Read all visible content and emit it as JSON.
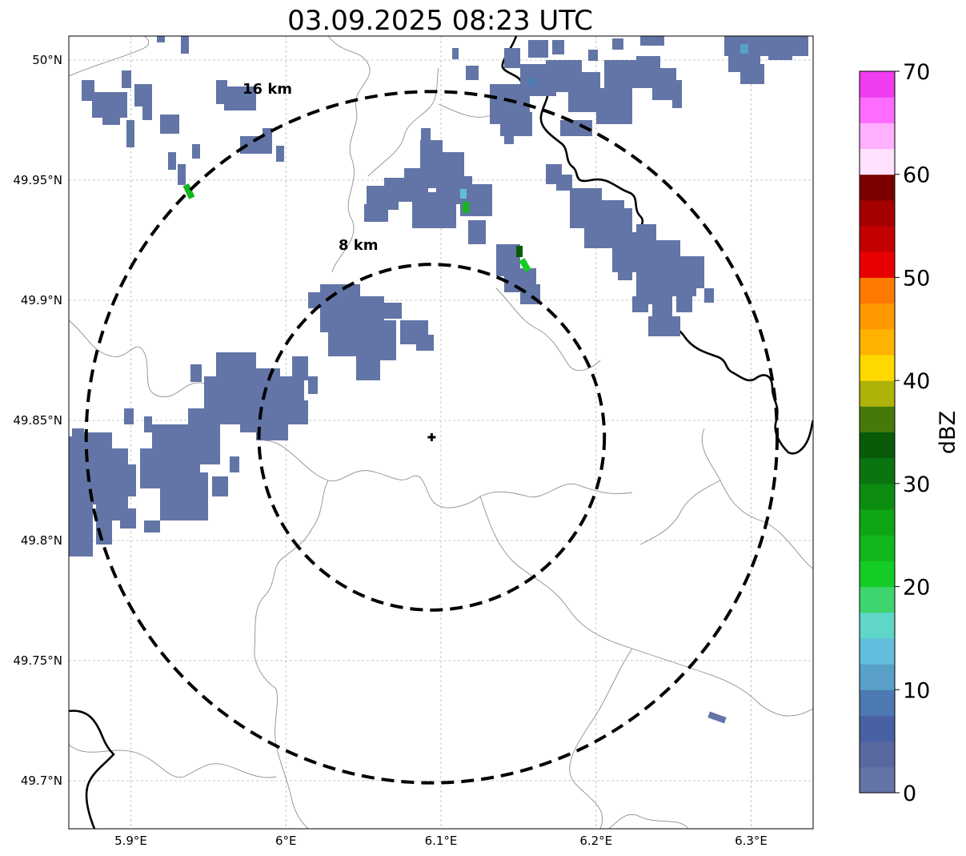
{
  "title": "03.09.2025 08:23 UTC",
  "map": {
    "lon_range": [
      5.86,
      6.34
    ],
    "lat_range": [
      49.68,
      50.01
    ],
    "lon_ticks": [
      {
        "value": 5.9,
        "label": "5.9°E"
      },
      {
        "value": 6.0,
        "label": "6°E"
      },
      {
        "value": 6.1,
        "label": "6.1°E"
      },
      {
        "value": 6.2,
        "label": "6.2°E"
      },
      {
        "value": 6.3,
        "label": "6.3°E"
      }
    ],
    "lat_ticks": [
      {
        "value": 49.7,
        "label": "49.7°N"
      },
      {
        "value": 49.75,
        "label": "49.75°N"
      },
      {
        "value": 49.8,
        "label": "49.8°N"
      },
      {
        "value": 49.85,
        "label": "49.85°N"
      },
      {
        "value": 49.9,
        "label": "49.9°N"
      },
      {
        "value": 49.95,
        "label": "49.95°N"
      },
      {
        "value": 50.0,
        "label": "50°N"
      }
    ],
    "radar_site": {
      "lon": 6.094,
      "lat": 49.843,
      "marker": "plus-marker"
    },
    "range_rings": [
      {
        "radius_km": 8,
        "label": "8 km"
      },
      {
        "radius_km": 16,
        "label": "16 km"
      }
    ],
    "echo_color": "#6275a6"
  },
  "colorbar": {
    "label": "dBZ",
    "min": 0,
    "max": 70,
    "step": 2.5,
    "ticks": [
      0,
      10,
      20,
      30,
      40,
      50,
      60,
      70
    ],
    "colors": [
      "#6574a6",
      "#5869a0",
      "#4861a4",
      "#4d7ab3",
      "#58a0c8",
      "#62bedc",
      "#5fd6c8",
      "#3ed56e",
      "#14cc24",
      "#11b71d",
      "#0fa515",
      "#0c8d11",
      "#0a7411",
      "#095b0a",
      "#457a0b",
      "#aeb30a",
      "#ffd800",
      "#ffb300",
      "#ff9900",
      "#ff7a00",
      "#e80000",
      "#c20000",
      "#a40000",
      "#7a0000",
      "#ffe1ff",
      "#ffb0ff",
      "#ff6cff",
      "#f03cf0"
    ]
  }
}
